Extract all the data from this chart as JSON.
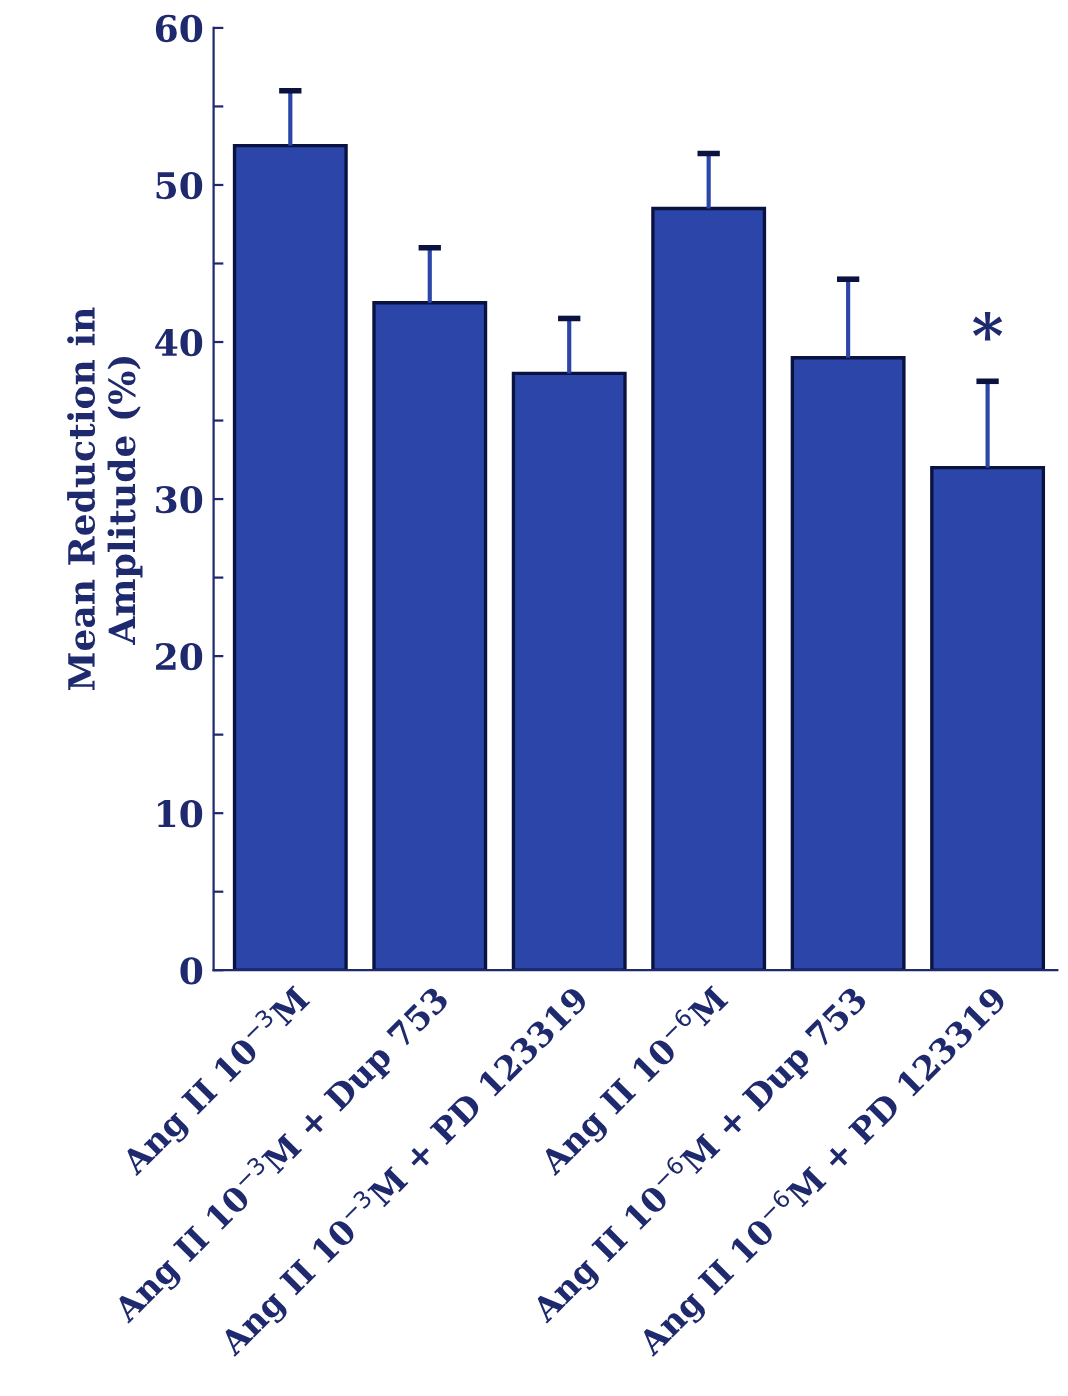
{
  "chart_data": {
    "type": "bar",
    "ylabel": "Mean Reduction in\nAmplitude (%)",
    "categories": [
      "Ang II 10$^{−3}$M",
      "Ang II 10$^{−3}$M + Dup 753",
      "Ang II 10$^{−3}$M + PD 123319",
      "Ang II 10$^{−6}$M",
      "Ang II 10$^{−6}$M + Dup 753",
      "Ang II 10$^{−6}$M + PD 123319"
    ],
    "series": [
      {
        "color": "#2b45a8",
        "values": [
          52.5,
          42.5,
          38,
          48.5,
          39,
          32
        ],
        "errors": [
          3.5,
          3.5,
          3.5,
          3.5,
          5,
          5.5
        ]
      }
    ],
    "ylim": [
      0,
      60
    ],
    "yticks": [
      0,
      {
        "value": 5,
        "label": null
      },
      10,
      {
        "value": 15,
        "label": null
      },
      20,
      {
        "value": 25,
        "label": null
      },
      30,
      {
        "value": 35,
        "label": null
      },
      40,
      {
        "value": 45,
        "label": null
      },
      50,
      {
        "value": 55,
        "label": null
      },
      60
    ],
    "annotations": [
      "*"
    ],
    "grid": false,
    "legend": false
  }
}
